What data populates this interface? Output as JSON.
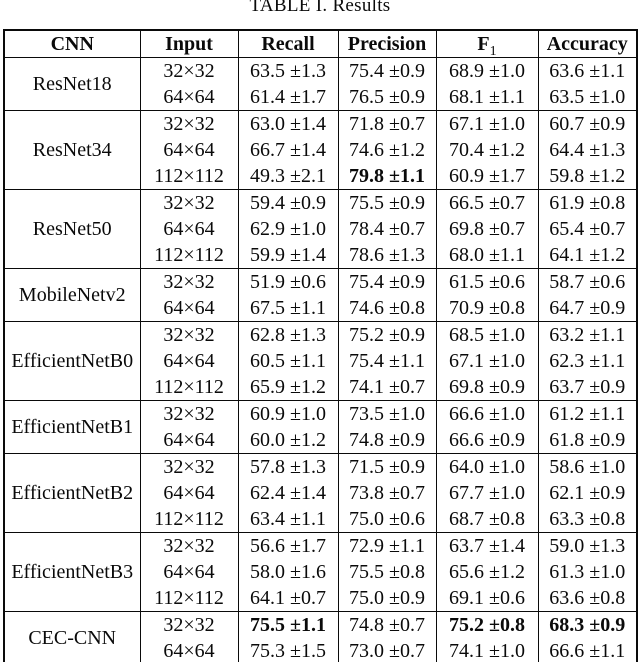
{
  "title": "TABLE I. Results",
  "colors": {
    "ink": "#0a0a0a",
    "background": "#ffffff",
    "rule": "#0a0a0a"
  },
  "table": {
    "headers": [
      {
        "label": "CNN"
      },
      {
        "label": "Input"
      },
      {
        "label": "Recall"
      },
      {
        "label": "Precision"
      },
      {
        "label": "F",
        "subscript": "1"
      },
      {
        "label": "Accuracy"
      }
    ],
    "groups": [
      {
        "cnn": "ResNet18",
        "rows": [
          {
            "input": "32×32",
            "recall": "63.5 ±1.3",
            "precision": "75.4 ±0.9",
            "f1": "68.9 ±1.0",
            "accuracy": "63.6 ±1.1",
            "bold": []
          },
          {
            "input": "64×64",
            "recall": "61.4 ±1.7",
            "precision": "76.5 ±0.9",
            "f1": "68.1 ±1.1",
            "accuracy": "63.5 ±1.0",
            "bold": []
          }
        ]
      },
      {
        "cnn": "ResNet34",
        "rows": [
          {
            "input": "32×32",
            "recall": "63.0 ±1.4",
            "precision": "71.8 ±0.7",
            "f1": "67.1 ±1.0",
            "accuracy": "60.7 ±0.9",
            "bold": []
          },
          {
            "input": "64×64",
            "recall": "66.7 ±1.4",
            "precision": "74.6 ±1.2",
            "f1": "70.4 ±1.2",
            "accuracy": "64.4 ±1.3",
            "bold": []
          },
          {
            "input": "112×112",
            "recall": "49.3 ±2.1",
            "precision": "79.8 ±1.1",
            "f1": "60.9 ±1.7",
            "accuracy": "59.8 ±1.2",
            "bold": [
              "precision"
            ]
          }
        ]
      },
      {
        "cnn": "ResNet50",
        "rows": [
          {
            "input": "32×32",
            "recall": "59.4 ±0.9",
            "precision": "75.5 ±0.9",
            "f1": "66.5 ±0.7",
            "accuracy": "61.9 ±0.8",
            "bold": []
          },
          {
            "input": "64×64",
            "recall": "62.9 ±1.0",
            "precision": "78.4 ±0.7",
            "f1": "69.8 ±0.7",
            "accuracy": "65.4 ±0.7",
            "bold": []
          },
          {
            "input": "112×112",
            "recall": "59.9 ±1.4",
            "precision": "78.6 ±1.3",
            "f1": "68.0 ±1.1",
            "accuracy": "64.1 ±1.2",
            "bold": []
          }
        ]
      },
      {
        "cnn": "MobileNetv2",
        "rows": [
          {
            "input": "32×32",
            "recall": "51.9 ±0.6",
            "precision": "75.4 ±0.9",
            "f1": "61.5 ±0.6",
            "accuracy": "58.7 ±0.6",
            "bold": []
          },
          {
            "input": "64×64",
            "recall": "67.5 ±1.1",
            "precision": "74.6 ±0.8",
            "f1": "70.9 ±0.8",
            "accuracy": "64.7 ±0.9",
            "bold": []
          }
        ]
      },
      {
        "cnn": "EfficientNetB0",
        "rows": [
          {
            "input": "32×32",
            "recall": "62.8 ±1.3",
            "precision": "75.2 ±0.9",
            "f1": "68.5 ±1.0",
            "accuracy": "63.2 ±1.1",
            "bold": []
          },
          {
            "input": "64×64",
            "recall": "60.5 ±1.1",
            "precision": "75.4 ±1.1",
            "f1": "67.1 ±1.0",
            "accuracy": "62.3 ±1.1",
            "bold": []
          },
          {
            "input": "112×112",
            "recall": "65.9 ±1.2",
            "precision": "74.1 ±0.7",
            "f1": "69.8 ±0.9",
            "accuracy": "63.7 ±0.9",
            "bold": []
          }
        ]
      },
      {
        "cnn": "EfficientNetB1",
        "rows": [
          {
            "input": "32×32",
            "recall": "60.9 ±1.0",
            "precision": "73.5 ±1.0",
            "f1": "66.6 ±1.0",
            "accuracy": "61.2 ±1.1",
            "bold": []
          },
          {
            "input": "64×64",
            "recall": "60.0 ±1.2",
            "precision": "74.8 ±0.9",
            "f1": "66.6 ±0.9",
            "accuracy": "61.8 ±0.9",
            "bold": []
          }
        ]
      },
      {
        "cnn": "EfficientNetB2",
        "rows": [
          {
            "input": "32×32",
            "recall": "57.8 ±1.3",
            "precision": "71.5 ±0.9",
            "f1": "64.0 ±1.0",
            "accuracy": "58.6 ±1.0",
            "bold": []
          },
          {
            "input": "64×64",
            "recall": "62.4 ±1.4",
            "precision": "73.8 ±0.7",
            "f1": "67.7 ±1.0",
            "accuracy": "62.1 ±0.9",
            "bold": []
          },
          {
            "input": "112×112",
            "recall": "63.4 ±1.1",
            "precision": "75.0 ±0.6",
            "f1": "68.7 ±0.8",
            "accuracy": "63.3 ±0.8",
            "bold": []
          }
        ]
      },
      {
        "cnn": "EfficientNetB3",
        "rows": [
          {
            "input": "32×32",
            "recall": "56.6 ±1.7",
            "precision": "72.9 ±1.1",
            "f1": "63.7 ±1.4",
            "accuracy": "59.0 ±1.3",
            "bold": []
          },
          {
            "input": "64×64",
            "recall": "58.0 ±1.6",
            "precision": "75.5 ±0.8",
            "f1": "65.6 ±1.2",
            "accuracy": "61.3 ±1.0",
            "bold": []
          },
          {
            "input": "112×112",
            "recall": "64.1 ±0.7",
            "precision": "75.0 ±0.9",
            "f1": "69.1 ±0.6",
            "accuracy": "63.6 ±0.8",
            "bold": []
          }
        ]
      },
      {
        "cnn": "CEC-CNN",
        "rows": [
          {
            "input": "32×32",
            "recall": "75.5 ±1.1",
            "precision": "74.8 ±0.7",
            "f1": "75.2 ±0.8",
            "accuracy": "68.3 ±0.9",
            "bold": [
              "recall",
              "f1",
              "accuracy"
            ]
          },
          {
            "input": "64×64",
            "recall": "75.3 ±1.5",
            "precision": "73.0 ±0.7",
            "f1": "74.1 ±1.0",
            "accuracy": "66.6 ±1.1",
            "bold": []
          }
        ]
      }
    ]
  }
}
